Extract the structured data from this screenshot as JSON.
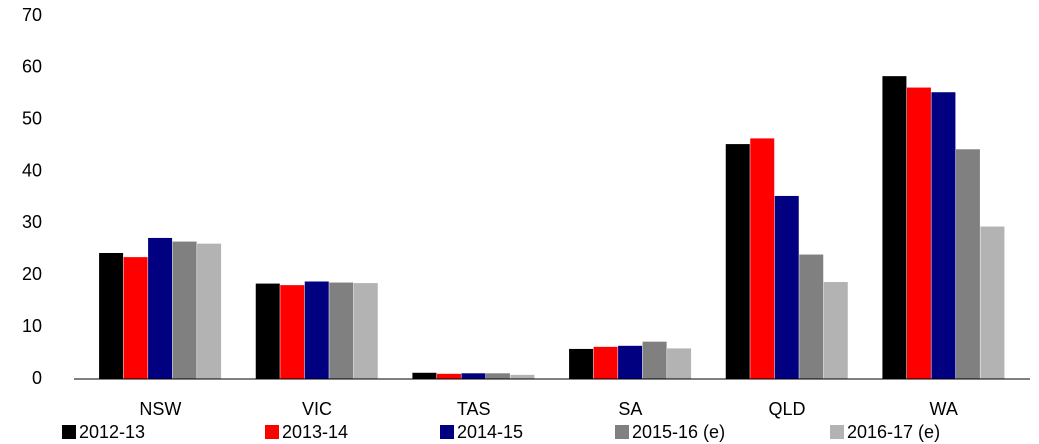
{
  "chart_data": {
    "type": "bar",
    "categories": [
      "NSW",
      "VIC",
      "TAS",
      "SA",
      "QLD",
      "WA"
    ],
    "series": [
      {
        "name": "2012-13",
        "color": "#000000",
        "values": [
          24.3,
          18.4,
          1.2,
          5.8,
          45.3,
          58.4
        ]
      },
      {
        "name": "2013-14",
        "color": "#ff0000",
        "values": [
          23.5,
          18.1,
          1.0,
          6.2,
          46.4,
          56.2
        ]
      },
      {
        "name": "2014-15",
        "color": "#000080",
        "values": [
          27.2,
          18.8,
          1.1,
          6.4,
          35.3,
          55.3
        ]
      },
      {
        "name": "2015-16 (e)",
        "color": "#808080",
        "values": [
          26.5,
          18.6,
          1.1,
          7.2,
          24.0,
          44.3
        ]
      },
      {
        "name": "2016-17 (e)",
        "color": "#b3b3b3",
        "values": [
          26.1,
          18.5,
          0.8,
          5.9,
          18.7,
          29.4
        ]
      }
    ],
    "ylim": [
      0,
      70
    ],
    "yticks": [
      0,
      10,
      20,
      30,
      40,
      50,
      60,
      70
    ],
    "grid": false
  }
}
